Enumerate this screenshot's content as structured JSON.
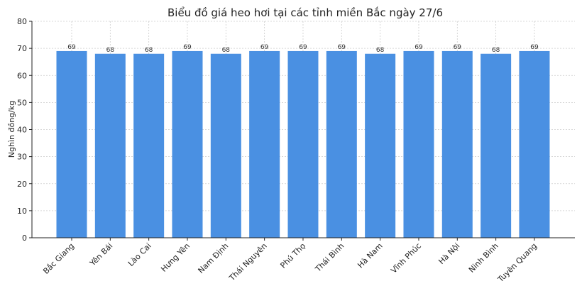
{
  "chart_data": {
    "type": "bar",
    "title": "Biểu đồ giá heo hơi tại các tỉnh miền Bắc ngày 27/6",
    "xlabel": "",
    "ylabel": "Nghìn đồng/kg",
    "ylim": [
      0,
      80
    ],
    "yticks": [
      "0",
      "10",
      "20",
      "30",
      "40",
      "50",
      "60",
      "70",
      "80"
    ],
    "grid": true,
    "bar_color": "#4a90e2",
    "categories": [
      "Bắc Giang",
      "Yên Bái",
      "Lào Cai",
      "Hưng Yên",
      "Nam Định",
      "Thái Nguyên",
      "Phú Thọ",
      "Thái Bình",
      "Hà Nam",
      "Vĩnh Phúc",
      "Hà Nội",
      "Ninh Bình",
      "Tuyên Quang"
    ],
    "values": [
      69,
      68,
      68,
      69,
      68,
      69,
      69,
      69,
      68,
      69,
      69,
      68,
      69
    ],
    "data_labels": [
      "69",
      "68",
      "68",
      "69",
      "68",
      "69",
      "69",
      "69",
      "68",
      "69",
      "69",
      "68",
      "69"
    ]
  }
}
